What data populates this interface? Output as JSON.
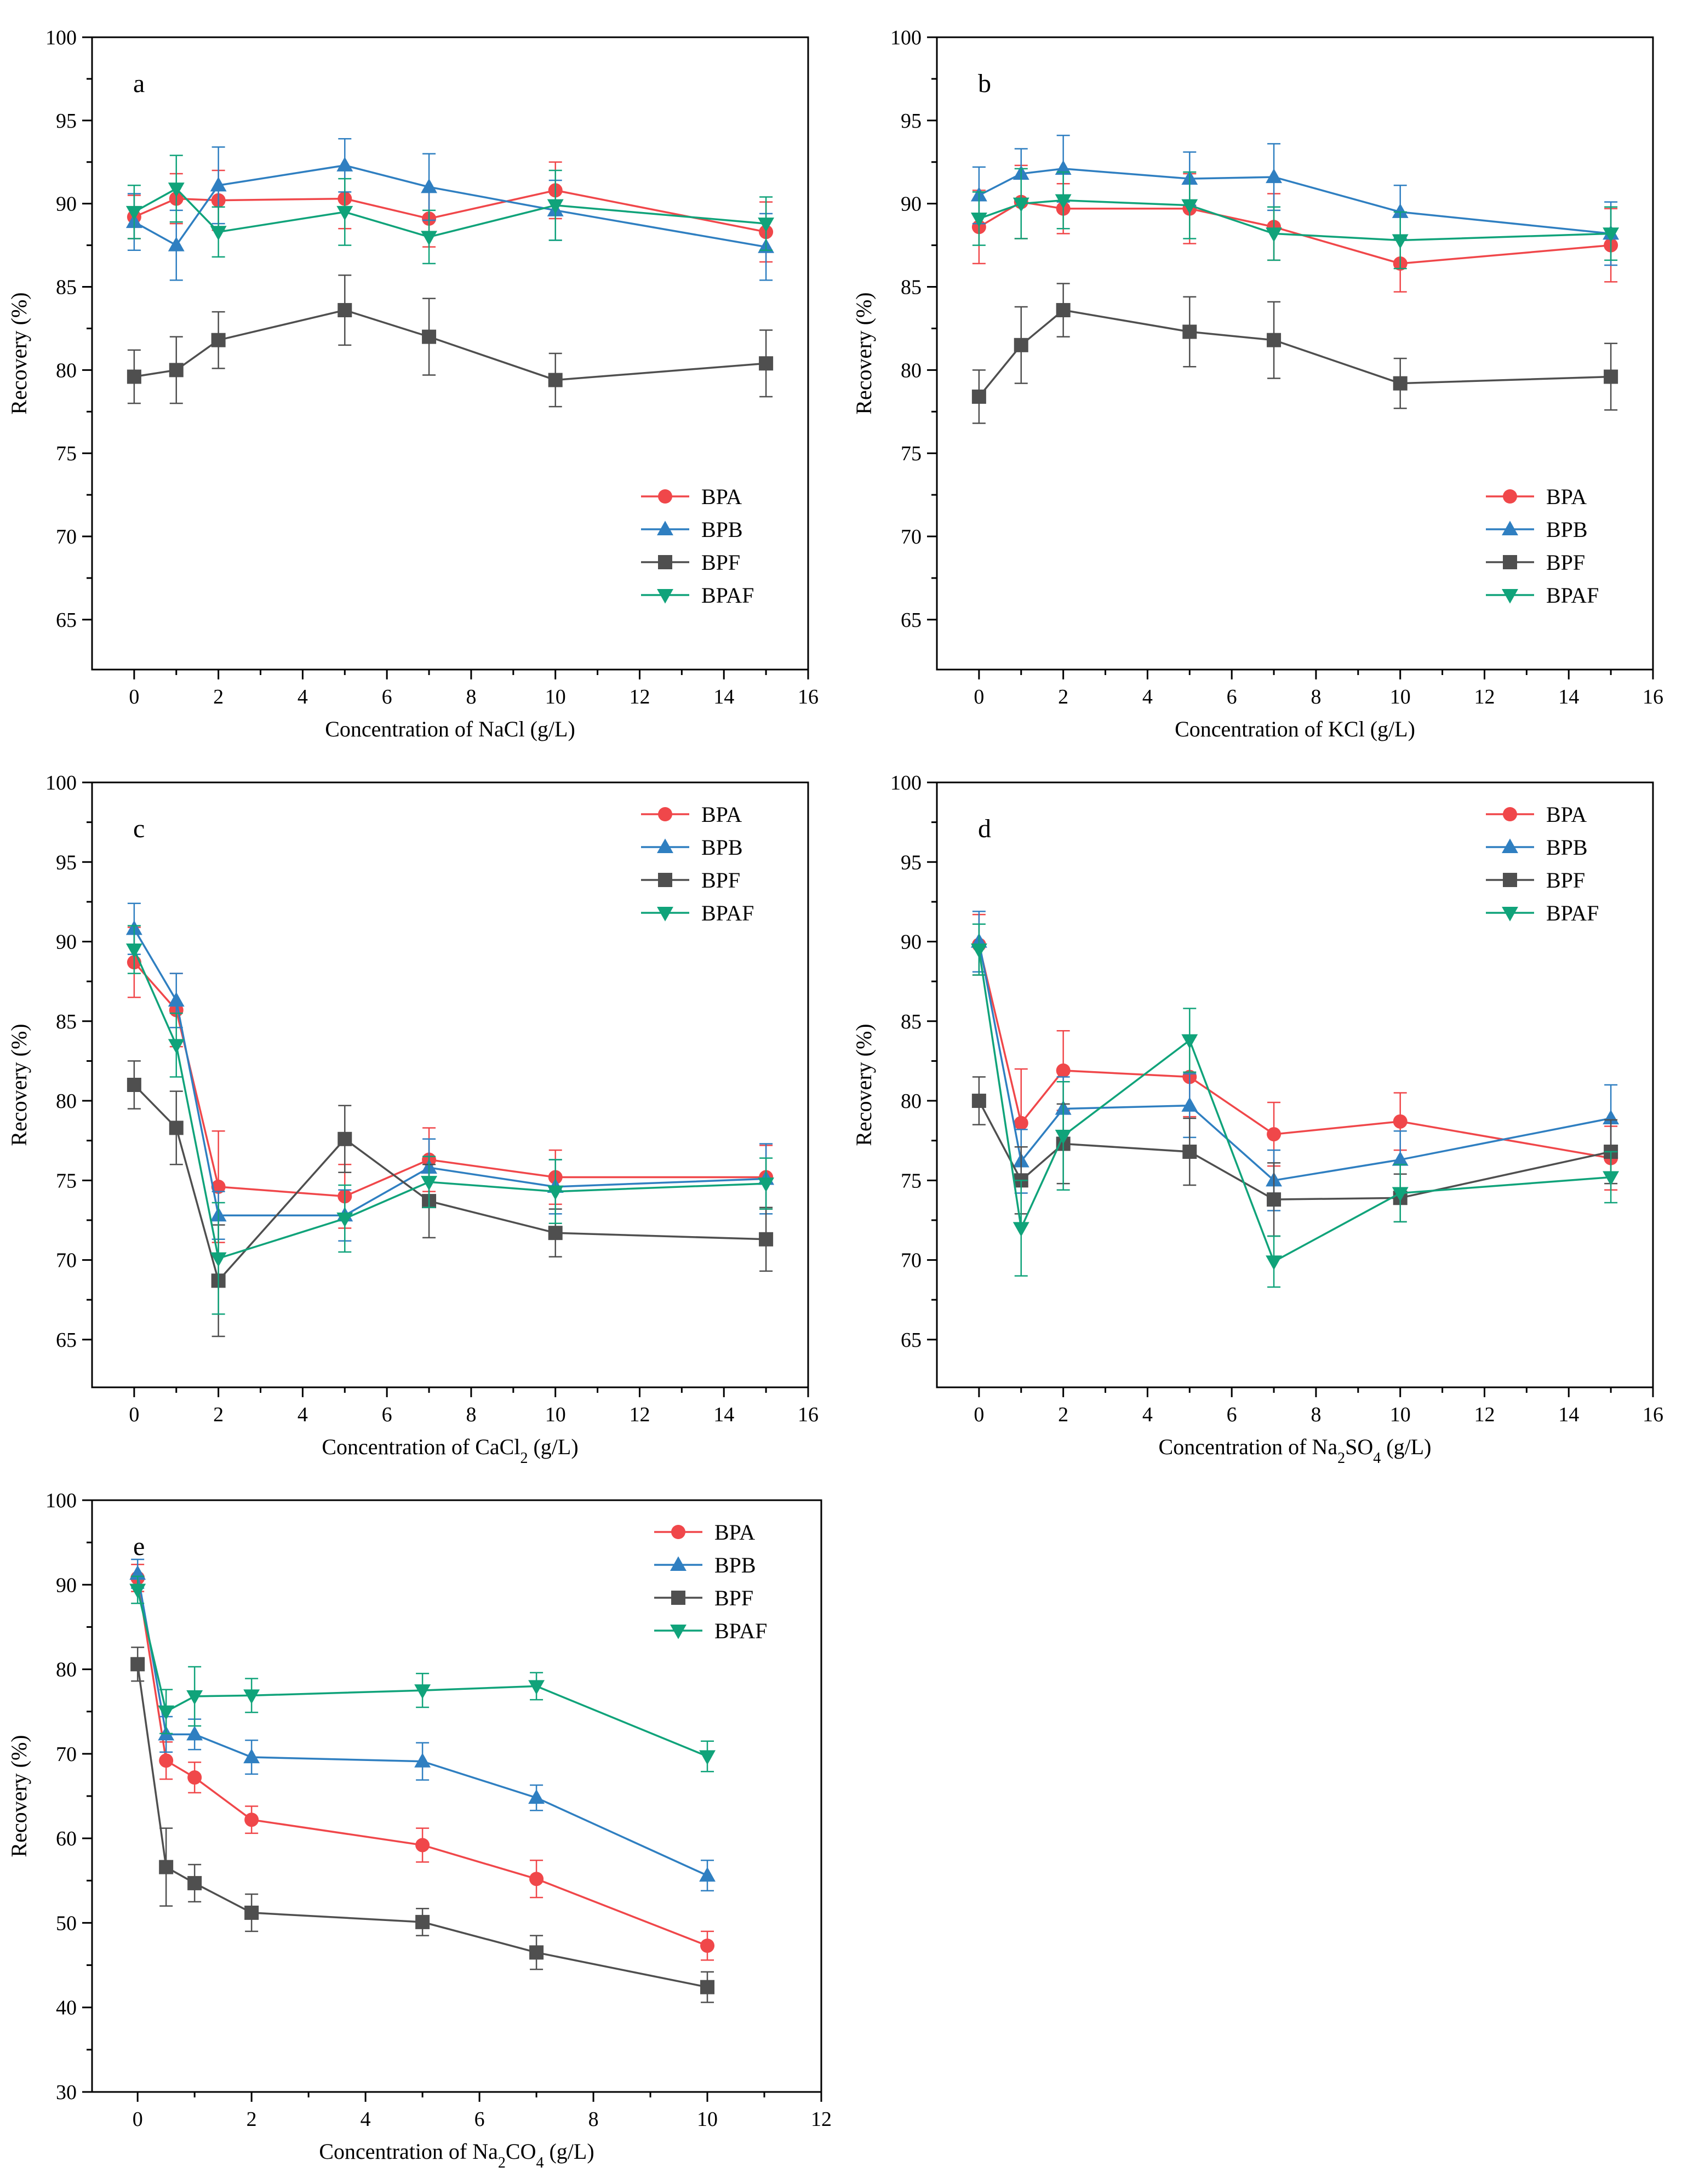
{
  "figure": {
    "colors": {
      "BPA": "#f0474a",
      "BPB": "#2f7fc1",
      "BPF": "#4f4f4f",
      "BPAF": "#10a37a"
    },
    "markers": {
      "BPA": "circle",
      "BPB": "triangle-up",
      "BPF": "square",
      "BPAF": "triangle-down"
    }
  },
  "chart_data": [
    {
      "type": "line",
      "panel": "a",
      "title": "",
      "xlabel_parts": [
        {
          "t": "Concentration of NaCl (g/L)",
          "sub": false
        }
      ],
      "ylabel": "Recovery (%)",
      "xlim": [
        -1,
        16
      ],
      "ylim": [
        62,
        100
      ],
      "xticks": [
        0,
        2,
        4,
        6,
        8,
        10,
        12,
        14,
        16
      ],
      "yticks": [
        65,
        70,
        75,
        80,
        85,
        90,
        95,
        100
      ],
      "x": [
        0,
        1,
        2,
        5,
        7,
        10,
        15
      ],
      "legend_position": "bottom-right",
      "series": [
        {
          "name": "BPA",
          "values": [
            89.2,
            90.3,
            90.2,
            90.3,
            89.1,
            90.8,
            88.3
          ],
          "errors": [
            1.3,
            1.5,
            1.8,
            1.8,
            1.7,
            1.7,
            1.8
          ]
        },
        {
          "name": "BPB",
          "values": [
            88.9,
            87.5,
            91.1,
            92.3,
            91.0,
            89.6,
            87.4
          ],
          "errors": [
            1.7,
            2.1,
            2.3,
            1.6,
            2.0,
            1.8,
            2.0
          ]
        },
        {
          "name": "BPF",
          "values": [
            79.6,
            80.0,
            81.8,
            83.6,
            82.0,
            79.4,
            80.4
          ],
          "errors": [
            1.6,
            2.0,
            1.7,
            2.1,
            2.3,
            1.6,
            2.0
          ]
        },
        {
          "name": "BPAF",
          "values": [
            89.5,
            90.9,
            88.3,
            89.5,
            88.0,
            89.9,
            88.8
          ],
          "errors": [
            1.6,
            2.0,
            1.5,
            2.0,
            1.6,
            2.1,
            1.6
          ]
        }
      ]
    },
    {
      "type": "line",
      "panel": "b",
      "title": "",
      "xlabel_parts": [
        {
          "t": "Concentration of KCl (g/L)",
          "sub": false
        }
      ],
      "ylabel": "Recovery (%)",
      "xlim": [
        -1,
        16
      ],
      "ylim": [
        62,
        100
      ],
      "xticks": [
        0,
        2,
        4,
        6,
        8,
        10,
        12,
        14,
        16
      ],
      "yticks": [
        65,
        70,
        75,
        80,
        85,
        90,
        95,
        100
      ],
      "x": [
        0,
        1,
        2,
        5,
        7,
        10,
        15
      ],
      "legend_position": "bottom-right",
      "series": [
        {
          "name": "BPA",
          "values": [
            88.6,
            90.1,
            89.7,
            89.7,
            88.6,
            86.4,
            87.5
          ],
          "errors": [
            2.2,
            2.2,
            1.5,
            2.1,
            2.0,
            1.7,
            2.2
          ]
        },
        {
          "name": "BPB",
          "values": [
            90.5,
            91.8,
            92.1,
            91.5,
            91.6,
            89.5,
            88.2
          ],
          "errors": [
            1.7,
            1.5,
            2.0,
            1.6,
            2.0,
            1.6,
            1.9
          ]
        },
        {
          "name": "BPF",
          "values": [
            78.4,
            81.5,
            83.6,
            82.3,
            81.8,
            79.2,
            79.6
          ],
          "errors": [
            1.6,
            2.3,
            1.6,
            2.1,
            2.3,
            1.5,
            2.0
          ]
        },
        {
          "name": "BPAF",
          "values": [
            89.1,
            90.0,
            90.2,
            89.9,
            88.2,
            87.8,
            88.2
          ],
          "errors": [
            1.6,
            2.1,
            1.7,
            2.0,
            1.6,
            1.7,
            1.6
          ]
        }
      ]
    },
    {
      "type": "line",
      "panel": "c",
      "title": "",
      "xlabel_parts": [
        {
          "t": "Concentration of CaCl",
          "sub": false
        },
        {
          "t": "2",
          "sub": true
        },
        {
          "t": " (g/L)",
          "sub": false
        }
      ],
      "ylabel": "Recovery (%)",
      "xlim": [
        -1,
        16
      ],
      "ylim": [
        62,
        100
      ],
      "xticks": [
        0,
        2,
        4,
        6,
        8,
        10,
        12,
        14,
        16
      ],
      "yticks": [
        65,
        70,
        75,
        80,
        85,
        90,
        95,
        100
      ],
      "x": [
        0,
        1,
        2,
        5,
        7,
        10,
        15
      ],
      "legend_position": "top-right",
      "series": [
        {
          "name": "BPA",
          "values": [
            88.7,
            85.7,
            74.6,
            74.0,
            76.3,
            75.2,
            75.2
          ],
          "errors": [
            2.2,
            2.3,
            3.5,
            2.0,
            2.0,
            1.7,
            2.0
          ]
        },
        {
          "name": "BPB",
          "values": [
            90.8,
            86.3,
            72.8,
            72.8,
            75.8,
            74.6,
            75.1
          ],
          "errors": [
            1.6,
            1.7,
            1.5,
            1.6,
            1.8,
            1.7,
            2.2
          ]
        },
        {
          "name": "BPF",
          "values": [
            81.0,
            78.3,
            68.7,
            77.6,
            73.7,
            71.7,
            71.3
          ],
          "errors": [
            1.5,
            2.3,
            3.5,
            2.1,
            2.3,
            1.5,
            2.0
          ]
        },
        {
          "name": "BPAF",
          "values": [
            89.5,
            83.5,
            70.1,
            72.6,
            74.9,
            74.3,
            74.8
          ],
          "errors": [
            1.5,
            2.0,
            3.5,
            2.1,
            1.6,
            2.0,
            1.6
          ]
        }
      ]
    },
    {
      "type": "line",
      "panel": "d",
      "title": "",
      "xlabel_parts": [
        {
          "t": "Concentration of Na",
          "sub": false
        },
        {
          "t": "2",
          "sub": true
        },
        {
          "t": "SO",
          "sub": false
        },
        {
          "t": "4",
          "sub": true
        },
        {
          "t": " (g/L)",
          "sub": false
        }
      ],
      "ylabel": "Recovery (%)",
      "xlim": [
        -1,
        16
      ],
      "ylim": [
        62,
        100
      ],
      "xticks": [
        0,
        2,
        4,
        6,
        8,
        10,
        12,
        14,
        16
      ],
      "yticks": [
        65,
        70,
        75,
        80,
        85,
        90,
        95,
        100
      ],
      "x": [
        0,
        1,
        2,
        5,
        7,
        10,
        15
      ],
      "legend_position": "top-right",
      "series": [
        {
          "name": "BPA",
          "values": [
            89.8,
            78.6,
            81.9,
            81.5,
            77.9,
            78.7,
            76.4
          ],
          "errors": [
            1.9,
            3.4,
            2.5,
            2.5,
            2.0,
            1.8,
            2.0
          ]
        },
        {
          "name": "BPB",
          "values": [
            90.0,
            76.2,
            79.5,
            79.7,
            75.0,
            76.3,
            78.9
          ],
          "errors": [
            1.9,
            2.0,
            2.0,
            2.0,
            1.9,
            1.8,
            2.1
          ]
        },
        {
          "name": "BPF",
          "values": [
            80.0,
            75.0,
            77.3,
            76.8,
            73.8,
            73.9,
            76.8
          ],
          "errors": [
            1.5,
            2.1,
            2.5,
            2.1,
            2.3,
            1.5,
            2.0
          ]
        },
        {
          "name": "BPAF",
          "values": [
            89.5,
            72.0,
            77.8,
            83.8,
            69.9,
            74.2,
            75.2
          ],
          "errors": [
            1.6,
            3.0,
            3.4,
            2.0,
            1.6,
            1.8,
            1.6
          ]
        }
      ]
    },
    {
      "type": "line",
      "panel": "e",
      "title": "",
      "xlabel_parts": [
        {
          "t": "Concentration of Na",
          "sub": false
        },
        {
          "t": "2",
          "sub": true
        },
        {
          "t": "CO",
          "sub": false
        },
        {
          "t": "4",
          "sub": true
        },
        {
          "t": " (g/L)",
          "sub": false
        }
      ],
      "ylabel": "Recovery (%)",
      "xlim": [
        -0.8,
        12
      ],
      "ylim": [
        30,
        100
      ],
      "xticks": [
        0,
        2,
        4,
        6,
        8,
        10,
        12
      ],
      "yticks": [
        30,
        40,
        50,
        60,
        70,
        80,
        90,
        100
      ],
      "x": [
        0,
        0.5,
        1,
        2,
        5,
        7,
        10
      ],
      "legend_position": "top-right",
      "series": [
        {
          "name": "BPA",
          "values": [
            90.8,
            69.2,
            67.2,
            62.2,
            59.2,
            55.2,
            47.3
          ],
          "errors": [
            1.6,
            2.2,
            1.8,
            1.6,
            2.0,
            2.2,
            1.7
          ]
        },
        {
          "name": "BPB",
          "values": [
            91.3,
            72.3,
            72.3,
            69.6,
            69.1,
            64.8,
            55.6
          ],
          "errors": [
            1.7,
            2.1,
            1.8,
            2.0,
            2.2,
            1.5,
            1.8
          ]
        },
        {
          "name": "BPF",
          "values": [
            80.6,
            56.6,
            54.7,
            51.2,
            50.1,
            46.5,
            42.4
          ],
          "errors": [
            2.0,
            4.6,
            2.2,
            2.2,
            1.6,
            2.0,
            1.8
          ]
        },
        {
          "name": "BPAF",
          "values": [
            89.4,
            75.0,
            76.8,
            76.9,
            77.5,
            78.0,
            69.7
          ],
          "errors": [
            1.6,
            2.6,
            3.5,
            2.0,
            2.0,
            1.6,
            1.8
          ]
        }
      ]
    }
  ]
}
